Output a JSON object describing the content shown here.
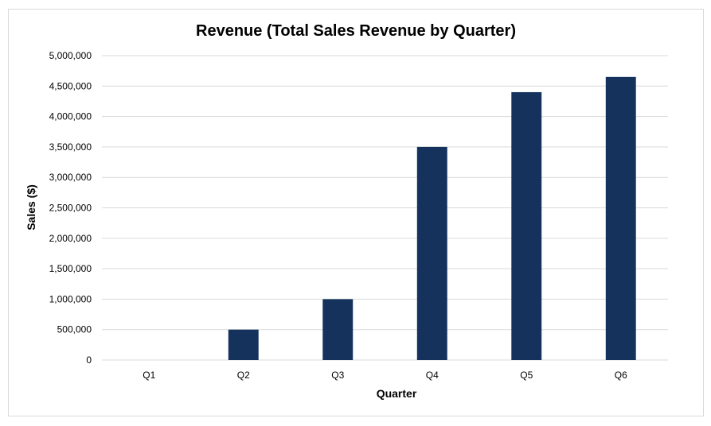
{
  "chart_data": {
    "type": "bar",
    "title": "Revenue (Total Sales Revenue by Quarter)",
    "xlabel": "Quarter",
    "ylabel": "Sales ($)",
    "categories": [
      "Q1",
      "Q2",
      "Q3",
      "Q4",
      "Q5",
      "Q6"
    ],
    "values": [
      0,
      500000,
      1000000,
      3500000,
      4400000,
      4650000
    ],
    "ylim": [
      0,
      5000000
    ],
    "yticks": [
      "0",
      "500,000",
      "1,000,000",
      "1,500,000",
      "2,000,000",
      "2,500,000",
      "3,000,000",
      "3,500,000",
      "4,000,000",
      "4,500,000",
      "5,000,000"
    ],
    "grid": true,
    "legend": "none",
    "bar_color": "#14325c"
  }
}
